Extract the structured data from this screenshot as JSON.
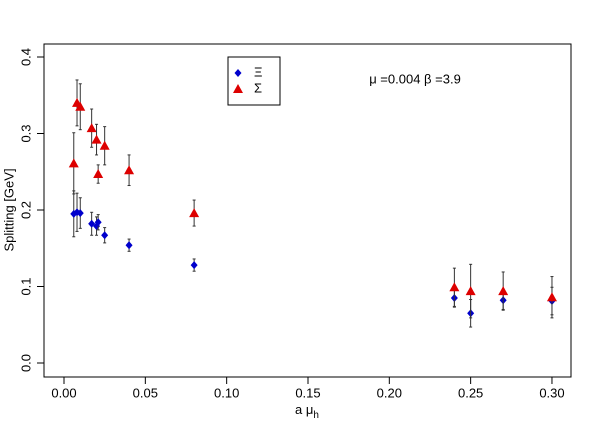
{
  "chart_data": {
    "type": "scatter",
    "x_label": "a μ",
    "x_label_subscript": "h",
    "y_label": "Splitting [GeV]",
    "annotation": "μ =0.004 β =3.9",
    "xlim": [
      -0.0123,
      0.3117
    ],
    "ylim": [
      -0.0183,
      0.417
    ],
    "xticks": [
      {
        "value": 0,
        "label": "0.00"
      },
      {
        "value": 0.05,
        "label": "0.05"
      },
      {
        "value": 0.1,
        "label": "0.10"
      },
      {
        "value": 0.15,
        "label": "0.15"
      },
      {
        "value": 0.2,
        "label": "0.20"
      },
      {
        "value": 0.25,
        "label": "0.25"
      },
      {
        "value": 0.3,
        "label": "0.30"
      }
    ],
    "yticks": [
      {
        "value": 0,
        "label": "0.0"
      },
      0.1,
      0.2,
      0.3,
      0.4
    ],
    "series": [
      {
        "name": "Ξ",
        "color": "#0000cc",
        "marker": "diamond",
        "x": [
          0.006,
          0.008,
          0.01,
          0.017,
          0.02,
          0.021,
          0.025,
          0.04,
          0.08,
          0.24,
          0.25,
          0.27,
          0.3
        ],
        "values": [
          0.195,
          0.197,
          0.196,
          0.182,
          0.179,
          0.184,
          0.167,
          0.154,
          0.128,
          0.085,
          0.065,
          0.082,
          0.081
        ],
        "errors": [
          0.03,
          0.025,
          0.02,
          0.015,
          0.012,
          0.01,
          0.01,
          0.008,
          0.008,
          0.012,
          0.018,
          0.012,
          0.018
        ]
      },
      {
        "name": "Σ",
        "color": "#dd0000",
        "marker": "triangle",
        "x": [
          0.006,
          0.008,
          0.01,
          0.017,
          0.02,
          0.021,
          0.025,
          0.04,
          0.08,
          0.24,
          0.25,
          0.27,
          0.3
        ],
        "values": [
          0.261,
          0.34,
          0.335,
          0.307,
          0.292,
          0.247,
          0.284,
          0.252,
          0.196,
          0.099,
          0.094,
          0.094,
          0.086
        ],
        "errors": [
          0.04,
          0.03,
          0.03,
          0.025,
          0.02,
          0.012,
          0.025,
          0.02,
          0.017,
          0.025,
          0.035,
          0.025,
          0.027
        ]
      }
    ]
  }
}
